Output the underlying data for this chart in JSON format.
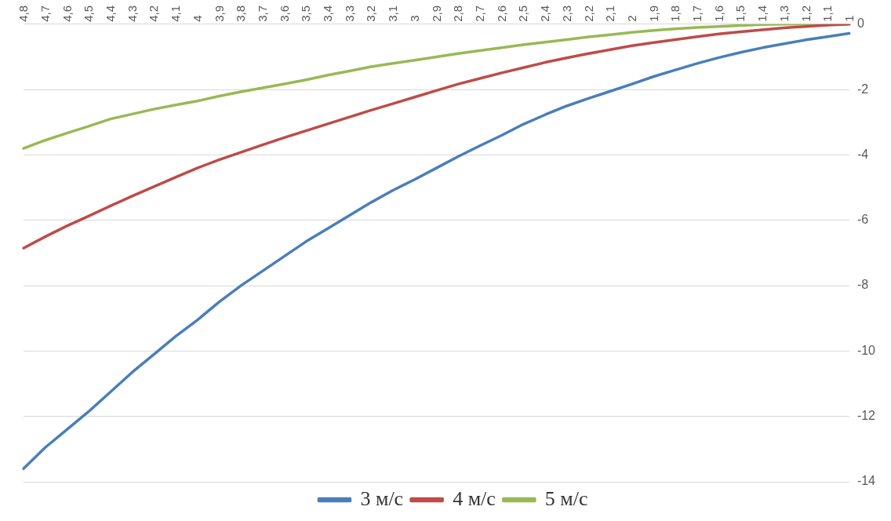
{
  "chart_data": {
    "type": "line",
    "categories": [
      "4,8",
      "4,7",
      "4,6",
      "4,5",
      "4,4",
      "4,3",
      "4,2",
      "4,1",
      "4",
      "3,9",
      "3,8",
      "3,7",
      "3,6",
      "3,5",
      "3,4",
      "3,3",
      "3,2",
      "3,1",
      "3",
      "2,9",
      "2,8",
      "2,7",
      "2,6",
      "2,5",
      "2,4",
      "2,3",
      "2,2",
      "2,1",
      "2",
      "1,9",
      "1,8",
      "1,7",
      "1,6",
      "1,5",
      "1,4",
      "1,3",
      "1,2",
      "1,1",
      "1"
    ],
    "series": [
      {
        "name": "3 м/с",
        "color": "#4a7ebb",
        "values": [
          -13.6,
          -12.95,
          -12.4,
          -11.85,
          -11.25,
          -10.65,
          -10.1,
          -9.55,
          -9.05,
          -8.5,
          -8.0,
          -7.55,
          -7.1,
          -6.65,
          -6.25,
          -5.85,
          -5.45,
          -5.08,
          -4.75,
          -4.4,
          -4.05,
          -3.72,
          -3.4,
          -3.06,
          -2.77,
          -2.5,
          -2.27,
          -2.05,
          -1.83,
          -1.6,
          -1.4,
          -1.2,
          -1.02,
          -0.86,
          -0.72,
          -0.6,
          -0.48,
          -0.38,
          -0.28
        ]
      },
      {
        "name": "4 м/с",
        "color": "#be4b48",
        "values": [
          -6.85,
          -6.5,
          -6.17,
          -5.87,
          -5.56,
          -5.26,
          -4.97,
          -4.68,
          -4.4,
          -4.15,
          -3.92,
          -3.69,
          -3.47,
          -3.26,
          -3.05,
          -2.84,
          -2.63,
          -2.43,
          -2.23,
          -2.03,
          -1.83,
          -1.66,
          -1.49,
          -1.33,
          -1.17,
          -1.03,
          -0.9,
          -0.78,
          -0.66,
          -0.56,
          -0.47,
          -0.38,
          -0.3,
          -0.23,
          -0.17,
          -0.11,
          -0.07,
          -0.03,
          0
        ]
      },
      {
        "name": "5 м/с",
        "color": "#98b954",
        "values": [
          -3.8,
          -3.55,
          -3.33,
          -3.12,
          -2.9,
          -2.75,
          -2.6,
          -2.47,
          -2.35,
          -2.2,
          -2.07,
          -1.95,
          -1.83,
          -1.7,
          -1.56,
          -1.43,
          -1.3,
          -1.2,
          -1.1,
          -1.0,
          -0.9,
          -0.81,
          -0.72,
          -0.63,
          -0.55,
          -0.47,
          -0.39,
          -0.32,
          -0.25,
          -0.19,
          -0.14,
          -0.1,
          -0.07,
          -0.04,
          -0.01,
          0,
          0,
          0,
          0
        ]
      }
    ],
    "ylim": [
      -14,
      0
    ],
    "yticks": [
      -14,
      -12,
      -10,
      -8,
      -6,
      -4,
      -2,
      0
    ],
    "grid": "y",
    "legend": "bottom",
    "marker": "none",
    "line_style": "solid"
  }
}
